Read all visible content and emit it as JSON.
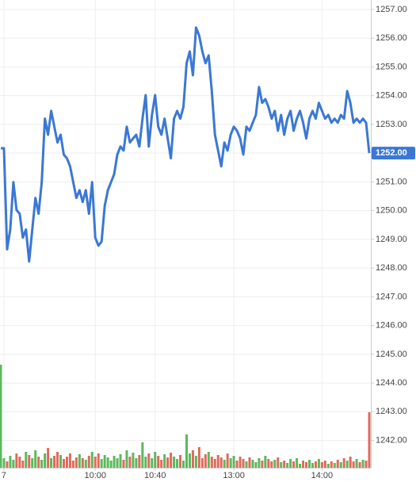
{
  "chart_data": {
    "type": "line",
    "categories": [
      null,
      "7",
      null,
      null,
      null,
      null,
      null,
      null,
      null,
      null,
      null,
      null,
      null,
      null,
      null,
      null,
      null,
      null,
      null,
      null,
      null,
      null,
      null,
      null,
      null,
      null,
      null,
      null,
      null,
      null,
      "10:00",
      null,
      null,
      null,
      null,
      null,
      null,
      null,
      null,
      null,
      null,
      null,
      null,
      null,
      null,
      null,
      null,
      null,
      null,
      "10:40",
      null,
      null,
      null,
      null,
      null,
      null,
      null,
      null,
      null,
      null,
      null,
      null,
      null,
      null,
      null,
      null,
      null,
      null,
      null,
      null,
      null,
      null,
      null,
      null,
      "13:00",
      null,
      null,
      null,
      null,
      null,
      null,
      null,
      null,
      null,
      null,
      null,
      null,
      null,
      null,
      null,
      null,
      null,
      null,
      null,
      null,
      null,
      null,
      null,
      null,
      null,
      null,
      null,
      "14:00",
      null,
      null,
      null,
      null,
      null,
      null,
      null,
      null,
      null,
      null,
      null,
      null,
      null,
      null,
      null
    ],
    "series": [
      {
        "name": "Price",
        "color": "#3a78d4",
        "values": [
          1252.17,
          1252.17,
          1248.65,
          1249.34,
          1250.99,
          1250.02,
          1249.89,
          1249.06,
          1249.34,
          1248.23,
          1249.34,
          1250.44,
          1249.89,
          1250.99,
          1253.2,
          1252.64,
          1253.47,
          1252.92,
          1252.37,
          1252.64,
          1251.95,
          1251.82,
          1251.54,
          1250.99,
          1250.44,
          1250.71,
          1250.3,
          1250.71,
          1249.89,
          1250.99,
          1249.06,
          1248.78,
          1248.92,
          1250.16,
          1250.71,
          1250.99,
          1251.27,
          1251.95,
          1252.23,
          1252.09,
          1252.92,
          1252.37,
          1252.51,
          1252.64,
          1252.23,
          1253.2,
          1254.02,
          1252.23,
          1253.33,
          1254.02,
          1252.92,
          1252.64,
          1253.2,
          1252.51,
          1251.82,
          1253.2,
          1253.47,
          1253.2,
          1253.61,
          1255.13,
          1255.54,
          1254.71,
          1256.37,
          1256.09,
          1255.54,
          1255.13,
          1255.4,
          1254.16,
          1252.64,
          1252.09,
          1251.54,
          1252.37,
          1252.09,
          1252.64,
          1252.92,
          1252.78,
          1252.51,
          1251.95,
          1252.92,
          1252.78,
          1253.06,
          1253.33,
          1254.3,
          1253.75,
          1253.88,
          1253.61,
          1253.2,
          1253.47,
          1252.78,
          1253.33,
          1252.64,
          1253.2,
          1253.47,
          1252.78,
          1253.2,
          1253.47,
          1253.06,
          1252.51,
          1253.2,
          1253.47,
          1253.2,
          1253.75,
          1253.47,
          1253.2,
          1253.33,
          1253.06,
          1253.2,
          1253.06,
          1253.33,
          1253.2,
          1254.16,
          1253.75,
          1253.06,
          1253.2,
          1253.06,
          1253.2,
          1253.06,
          1252.0
        ]
      },
      {
        "name": "Volume",
        "type": "bar",
        "values": [
          130,
          12,
          8,
          15,
          10,
          18,
          14,
          9,
          20,
          16,
          12,
          22,
          14,
          10,
          18,
          25,
          12,
          15,
          20,
          16,
          11,
          14,
          18,
          9,
          13,
          17,
          12,
          10,
          15,
          20,
          14,
          18,
          11,
          16,
          13,
          9,
          15,
          12,
          17,
          10,
          22,
          14,
          19,
          12,
          16,
          32,
          14,
          18,
          12,
          20,
          15,
          10,
          17,
          13,
          19,
          14,
          11,
          16,
          9,
          42,
          18,
          22,
          15,
          26,
          12,
          17,
          20,
          14,
          11,
          16,
          13,
          10,
          18,
          12,
          15,
          9,
          14,
          11,
          8,
          13,
          10,
          7,
          12,
          9,
          15,
          11,
          8,
          10,
          13,
          7,
          9,
          6,
          11,
          8,
          12,
          5,
          9,
          7,
          10,
          6,
          8,
          11,
          7,
          9,
          5,
          8,
          6,
          10,
          7,
          12,
          9,
          14,
          8,
          11,
          7,
          10,
          9,
          70
        ]
      }
    ],
    "up_color": "#5cb85c",
    "down_color": "#e06a5b",
    "ylim": [
      1241.05,
      1257.33
    ],
    "yticks": [
      {
        "value": 1242,
        "label": "1242.00"
      },
      {
        "value": 1243,
        "label": "1243.00"
      },
      {
        "value": 1244,
        "label": "1244.00"
      },
      {
        "value": 1245,
        "label": "1245.00"
      },
      {
        "value": 1246,
        "label": "1246.00"
      },
      {
        "value": 1247,
        "label": "1247.00"
      },
      {
        "value": 1248,
        "label": "1248.00"
      },
      {
        "value": 1249,
        "label": "1249.00"
      },
      {
        "value": 1250,
        "label": "1250.00"
      },
      {
        "value": 1251,
        "label": "1251.00"
      },
      {
        "value": 1252,
        "label": "1252.00"
      },
      {
        "value": 1253,
        "label": "1253.00"
      },
      {
        "value": 1254,
        "label": "1254.00"
      },
      {
        "value": 1255,
        "label": "1255.00"
      },
      {
        "value": 1256,
        "label": "1256.00"
      },
      {
        "value": 1257,
        "label": "1257.00"
      }
    ],
    "last_price": {
      "value": 1252,
      "label": "1252.00"
    },
    "grid": true
  }
}
